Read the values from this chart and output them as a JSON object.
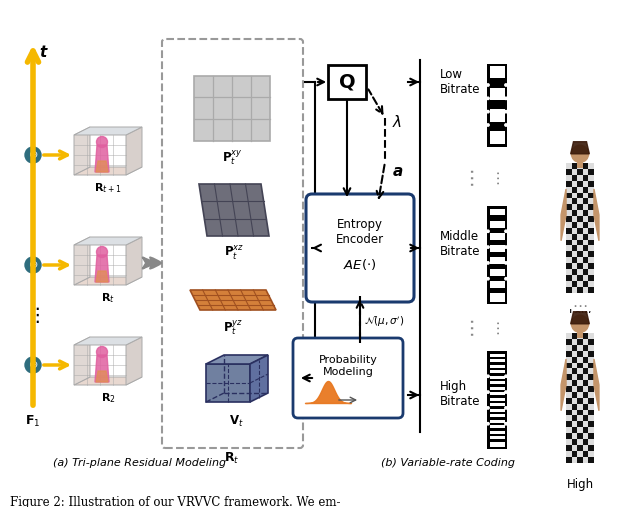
{
  "caption": "Figure 2: Illustration of our VRVVC framework. We em-",
  "subtitle_a": "(a) Tri-plane Residual Modeling",
  "subtitle_b": "(b) Variable-rate Coding",
  "yellow": "#F5B800",
  "teal_circle": "#2E6D7E",
  "blue_ae": "#1A3A6E",
  "blue_pm": "#1A3A6E",
  "orange_grid": "#D4723A",
  "orange_grid_face": "#D4833A",
  "dark_navy": "#2D3F6E",
  "xz_gray": "#6A6A7A",
  "xy_gray": "#C8C8C8",
  "nerf_box_face": "#F0ECE8",
  "nerf_grid_ec": "#AAAAAA",
  "pink_person": "#E070A0",
  "vt_face": "#8090B0",
  "vt_edge": "#2A3060"
}
